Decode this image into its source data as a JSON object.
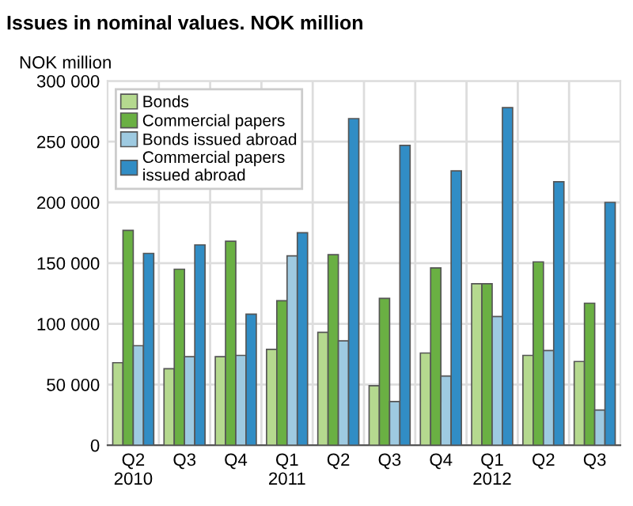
{
  "chart_data": {
    "type": "bar",
    "title": "Issues in nominal values. NOK million",
    "ylabel": "NOK million",
    "categories": [
      "Q2\n2010",
      "Q3",
      "Q4",
      "Q1\n2011",
      "Q2",
      "Q3",
      "Q4",
      "Q1\n2012",
      "Q2",
      "Q3"
    ],
    "series": [
      {
        "name": "Bonds",
        "color": "#b5d98f",
        "values": [
          68000,
          63000,
          73000,
          79000,
          93000,
          49000,
          76000,
          133000,
          74000,
          69000
        ]
      },
      {
        "name": "Commercial papers",
        "color": "#6ab043",
        "values": [
          177000,
          145000,
          168000,
          119000,
          157000,
          121000,
          146000,
          133000,
          151000,
          117000
        ]
      },
      {
        "name": "Bonds issued abroad",
        "color": "#9ecae1",
        "values": [
          82000,
          73000,
          74000,
          156000,
          86000,
          36000,
          57000,
          106000,
          78000,
          29000
        ]
      },
      {
        "name": "Commercial papers\nissued abroad",
        "color": "#318dc5",
        "values": [
          158000,
          165000,
          108000,
          175000,
          269000,
          247000,
          226000,
          278000,
          217000,
          200000
        ]
      }
    ],
    "ylim": [
      0,
      300000
    ],
    "yticks": [
      {
        "value": 0,
        "label": "0"
      },
      {
        "value": 50000,
        "label": "50 000"
      },
      {
        "value": 100000,
        "label": "100 000"
      },
      {
        "value": 150000,
        "label": "150 000"
      },
      {
        "value": 200000,
        "label": "200 000"
      },
      {
        "value": 250000,
        "label": "250 000"
      },
      {
        "value": 300000,
        "label": "300 000"
      }
    ],
    "grid": true,
    "legend": "top left"
  }
}
